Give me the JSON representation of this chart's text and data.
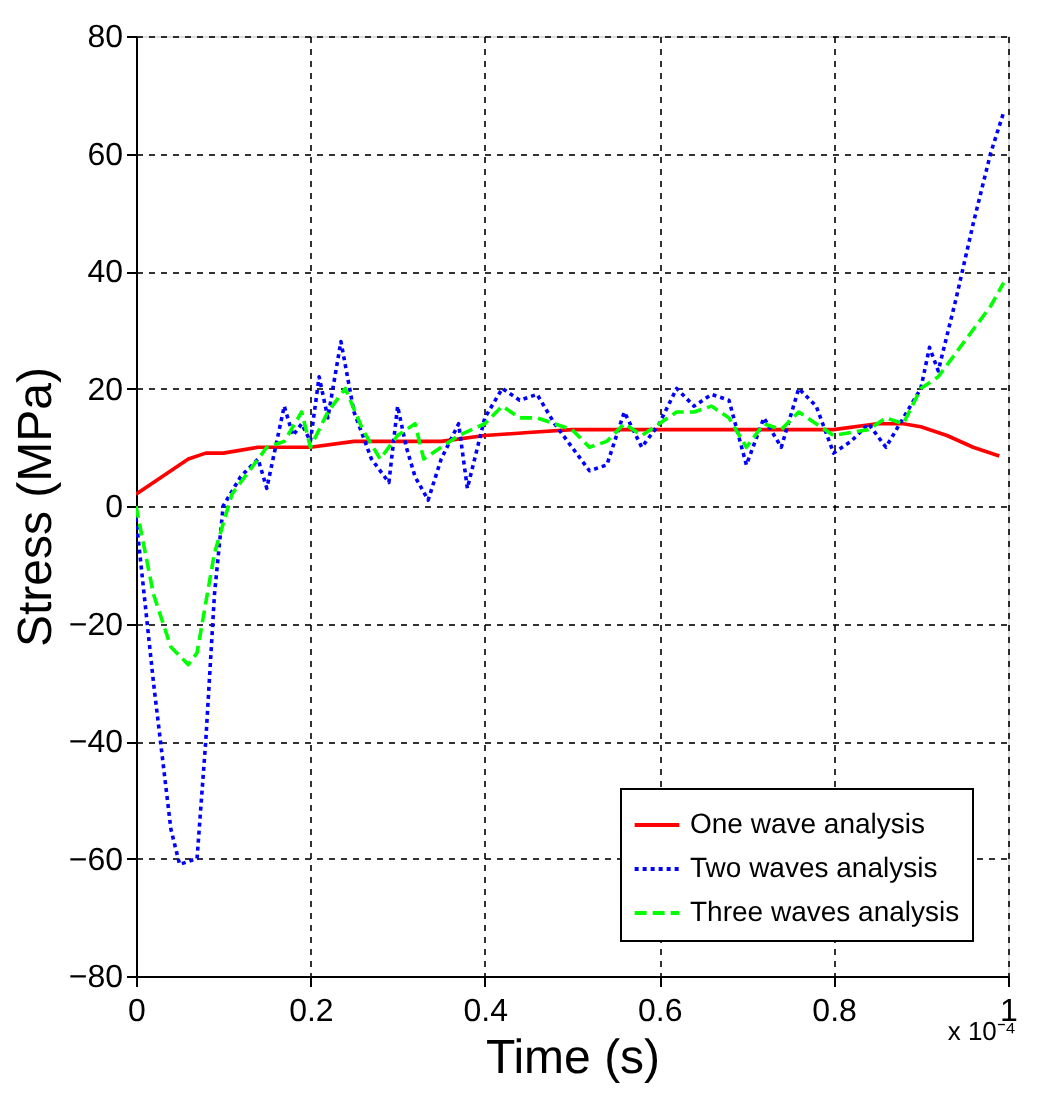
{
  "chart_data": {
    "type": "line",
    "xlabel": "Time (s)",
    "ylabel": "Stress (MPa)",
    "xlim": [
      0,
      1
    ],
    "xticks": [
      0,
      0.2,
      0.4,
      0.6,
      0.8,
      1
    ],
    "ylim": [
      -80,
      80
    ],
    "yticks": [
      -80,
      -60,
      -40,
      -20,
      0,
      20,
      40,
      60,
      80
    ],
    "grid": true,
    "legend": "bottom right",
    "annotations": [
      "x 10⁻⁴"
    ],
    "series": [
      {
        "name": "One wave analysis",
        "color": "#ff0000",
        "line_style": "solid",
        "x": [
          0,
          0.02,
          0.04,
          0.06,
          0.08,
          0.1,
          0.14,
          0.2,
          0.25,
          0.3,
          0.35,
          0.4,
          0.45,
          0.5,
          0.55,
          0.6,
          0.65,
          0.7,
          0.75,
          0.8,
          0.85,
          0.88,
          0.9,
          0.93,
          0.96,
          0.99
        ],
        "values": [
          2,
          4,
          6,
          8,
          9,
          9,
          10,
          10,
          11,
          11,
          11,
          12,
          12.5,
          13,
          13,
          13,
          13,
          13,
          13,
          13,
          14,
          14,
          13.5,
          12,
          10,
          8.5
        ]
      },
      {
        "name": "Two waves analysis",
        "color": "#0000ff",
        "line_style": "dotted",
        "x": [
          0,
          0.02,
          0.04,
          0.05,
          0.07,
          0.08,
          0.09,
          0.1,
          0.12,
          0.14,
          0.15,
          0.17,
          0.18,
          0.19,
          0.2,
          0.21,
          0.22,
          0.235,
          0.25,
          0.27,
          0.29,
          0.3,
          0.31,
          0.32,
          0.335,
          0.35,
          0.37,
          0.38,
          0.4,
          0.42,
          0.44,
          0.46,
          0.48,
          0.5,
          0.52,
          0.54,
          0.56,
          0.58,
          0.6,
          0.62,
          0.64,
          0.66,
          0.68,
          0.7,
          0.72,
          0.74,
          0.76,
          0.78,
          0.8,
          0.82,
          0.84,
          0.86,
          0.88,
          0.9,
          0.91,
          0.92,
          0.94,
          0.96,
          0.98,
          0.995
        ],
        "values": [
          -2,
          -30,
          -55,
          -61,
          -60,
          -40,
          -15,
          0,
          5,
          8,
          3,
          17,
          12,
          14,
          11,
          22,
          15,
          28,
          16,
          8,
          4,
          17,
          10,
          5,
          1,
          8,
          14,
          3,
          15,
          20,
          18,
          19,
          14,
          10,
          6,
          7,
          16,
          10,
          14,
          20,
          17,
          19,
          18,
          7,
          15,
          10,
          20,
          17,
          9,
          11,
          14,
          10,
          15,
          20,
          27,
          23,
          35,
          48,
          60,
          67
        ]
      },
      {
        "name": "Three waves analysis",
        "color": "#00ff00",
        "line_style": "dashed",
        "x": [
          0,
          0.02,
          0.04,
          0.06,
          0.07,
          0.09,
          0.11,
          0.13,
          0.15,
          0.17,
          0.19,
          0.2,
          0.22,
          0.24,
          0.26,
          0.28,
          0.3,
          0.32,
          0.33,
          0.35,
          0.37,
          0.4,
          0.42,
          0.44,
          0.46,
          0.5,
          0.52,
          0.54,
          0.56,
          0.58,
          0.6,
          0.62,
          0.64,
          0.66,
          0.68,
          0.7,
          0.72,
          0.74,
          0.76,
          0.8,
          0.84,
          0.86,
          0.88,
          0.9,
          0.92,
          0.94,
          0.96,
          0.98,
          0.995
        ],
        "values": [
          0,
          -15,
          -24,
          -27,
          -25,
          -8,
          2,
          6,
          10,
          11,
          16,
          10,
          16,
          20,
          13,
          8,
          12,
          14,
          8,
          10,
          12,
          14,
          17,
          15,
          15,
          13,
          10,
          11,
          14,
          12,
          14,
          16,
          16,
          17,
          15,
          10,
          14,
          13,
          16,
          12,
          13,
          15,
          14,
          20,
          22,
          26,
          30,
          34,
          38
        ]
      }
    ]
  }
}
